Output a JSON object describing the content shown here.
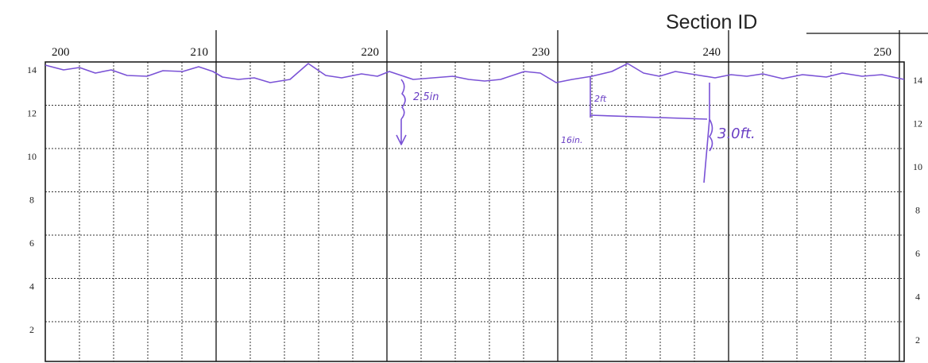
{
  "header": {
    "title": "Section ID"
  },
  "axis": {
    "top": [
      200,
      210,
      220,
      230,
      240,
      250
    ],
    "left": [
      14,
      12,
      10,
      8,
      6,
      4,
      2
    ],
    "right": [
      14,
      12,
      10,
      8,
      6,
      4,
      2
    ]
  },
  "annotations": [
    "2.5in",
    "2ft",
    "16in.",
    "3.0ft."
  ]
}
